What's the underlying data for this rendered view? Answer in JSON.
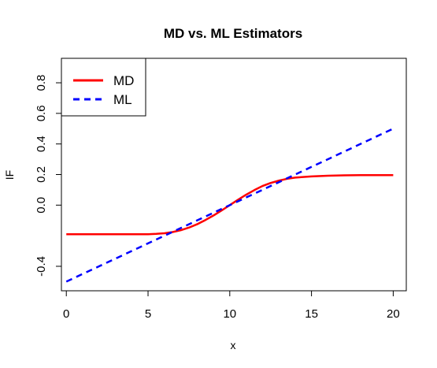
{
  "chart_data": {
    "type": "line",
    "title": "MD vs. ML Estimators",
    "xlabel": "x",
    "ylabel": "IF",
    "xlim": [
      -0.3,
      20.8
    ],
    "ylim": [
      -0.56,
      0.96
    ],
    "x_ticks": [
      0,
      5,
      10,
      15,
      20
    ],
    "x_tick_labels": [
      "0",
      "5",
      "10",
      "15",
      "20"
    ],
    "y_ticks": [
      -0.4,
      0.0,
      0.2,
      0.4,
      0.6,
      0.8
    ],
    "y_tick_labels": [
      "-0.4",
      "0.0",
      "0.2",
      "0.4",
      "0.6",
      "0.8"
    ],
    "grid": false,
    "legend_position": "top-left",
    "series": [
      {
        "name": "MD",
        "color": "#ff0000",
        "line_style": "solid",
        "x": [
          0,
          1,
          2,
          3,
          4,
          5,
          5.5,
          6,
          6.5,
          7,
          7.5,
          8,
          8.5,
          9,
          9.5,
          10,
          10.5,
          11,
          11.5,
          12,
          12.5,
          13,
          13.5,
          14,
          15,
          16,
          17,
          18,
          19,
          20
        ],
        "y": [
          -0.19,
          -0.19,
          -0.19,
          -0.19,
          -0.19,
          -0.19,
          -0.188,
          -0.184,
          -0.176,
          -0.164,
          -0.147,
          -0.125,
          -0.098,
          -0.068,
          -0.035,
          0.0,
          0.035,
          0.068,
          0.098,
          0.125,
          0.145,
          0.16,
          0.172,
          0.18,
          0.188,
          0.192,
          0.195,
          0.196,
          0.196,
          0.196
        ]
      },
      {
        "name": "ML",
        "color": "#0000ff",
        "line_style": "dashed",
        "x": [
          0,
          20
        ],
        "y": [
          -0.5,
          0.5
        ]
      }
    ]
  }
}
